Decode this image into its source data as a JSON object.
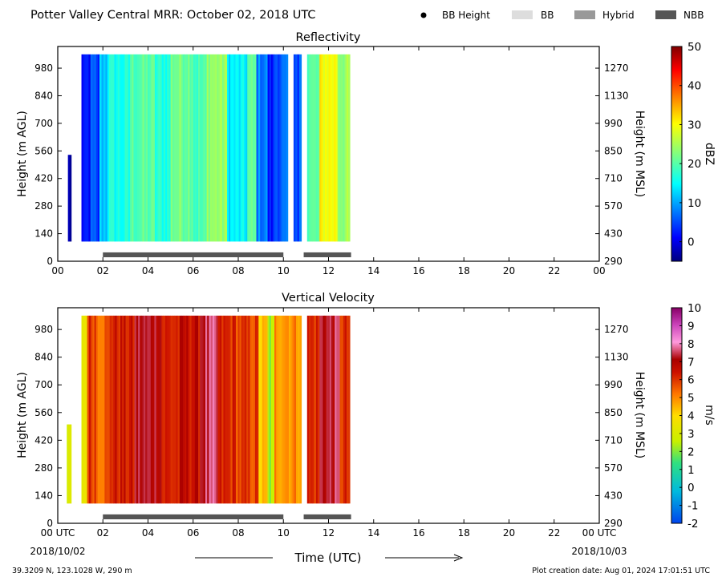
{
  "header": {
    "title": "Potter Valley Central MRR:  October 02, 2018 UTC",
    "legend": [
      {
        "label": "BB Height",
        "marker": "dot",
        "color": "#000000"
      },
      {
        "label": "BB",
        "marker": "box",
        "color": "#dddddd"
      },
      {
        "label": "Hybrid",
        "marker": "box",
        "color": "#999999"
      },
      {
        "label": "NBB",
        "marker": "box",
        "color": "#555555"
      }
    ]
  },
  "footer": {
    "location": "39.3209 N, 123.1028 W, 290 m",
    "created": "Plot creation date: Aug 01, 2024 17:01:51 UTC",
    "xlabel": "Time (UTC)",
    "start_date": "2018/10/02",
    "end_date": "2018/10/03"
  },
  "chart_data": [
    {
      "type": "heatmap",
      "title": "Reflectivity",
      "ylabel": "Height (m AGL)",
      "ylabel_right": "Height (m MSL)",
      "colorbar_label": "dBZ",
      "colorbar_ticks": [
        "50",
        "40",
        "30",
        "20",
        "10",
        "0"
      ],
      "color_range": [
        -5,
        50
      ],
      "xlim": [
        0,
        24
      ],
      "ylim": [
        0,
        1090
      ],
      "x_ticks": [
        "00",
        "02",
        "04",
        "06",
        "08",
        "10",
        "12",
        "14",
        "16",
        "18",
        "20",
        "22",
        "00"
      ],
      "y_ticks": [
        "0",
        "140",
        "280",
        "420",
        "560",
        "700",
        "840",
        "980"
      ],
      "y_ticks_right": [
        "290",
        "430",
        "570",
        "710",
        "850",
        "990",
        "1130",
        "1270"
      ],
      "data_height_range": [
        100,
        1050
      ],
      "profiles": [
        {
          "start": 0.45,
          "end": 0.6,
          "value": -3,
          "top": 540
        },
        {
          "start": 1.05,
          "end": 1.2,
          "value": 0
        },
        {
          "start": 1.2,
          "end": 1.45,
          "value": 2
        },
        {
          "start": 1.45,
          "end": 1.7,
          "value": 5
        },
        {
          "start": 1.7,
          "end": 1.85,
          "value": 3
        },
        {
          "start": 1.85,
          "end": 2.2,
          "value": 12
        },
        {
          "start": 2.2,
          "end": 3.2,
          "value": 16
        },
        {
          "start": 3.2,
          "end": 4.3,
          "value": 20
        },
        {
          "start": 4.3,
          "end": 5.0,
          "value": 17
        },
        {
          "start": 5.0,
          "end": 6.0,
          "value": 22
        },
        {
          "start": 6.0,
          "end": 6.6,
          "value": 19
        },
        {
          "start": 6.6,
          "end": 7.5,
          "value": 24
        },
        {
          "start": 7.5,
          "end": 8.4,
          "value": 14
        },
        {
          "start": 8.4,
          "end": 8.8,
          "value": 20
        },
        {
          "start": 8.8,
          "end": 9.3,
          "value": 8
        },
        {
          "start": 9.3,
          "end": 9.6,
          "value": 2
        },
        {
          "start": 9.6,
          "end": 10.2,
          "value": 6
        },
        {
          "start": 10.45,
          "end": 10.7,
          "value": 4
        },
        {
          "start": 10.7,
          "end": 10.8,
          "value": 10
        },
        {
          "start": 11.05,
          "end": 11.6,
          "value": 20
        },
        {
          "start": 11.6,
          "end": 12.4,
          "value": 30
        },
        {
          "start": 12.4,
          "end": 12.95,
          "value": 24
        }
      ],
      "bright_band": [
        {
          "start": 2.0,
          "end": 10.0,
          "type": "NBB"
        },
        {
          "start": 10.9,
          "end": 13.0,
          "type": "NBB"
        }
      ]
    },
    {
      "type": "heatmap",
      "title": "Vertical Velocity",
      "ylabel": "Height (m AGL)",
      "ylabel_right": "Height (m MSL)",
      "colorbar_label": "m/s",
      "colorbar_ticks": [
        "10",
        "9",
        "8",
        "7",
        "6",
        "5",
        "4",
        "3",
        "2",
        "1",
        "0",
        "-1",
        "-2"
      ],
      "color_range": [
        -2,
        10
      ],
      "xlim": [
        0,
        24
      ],
      "ylim": [
        0,
        1090
      ],
      "x_ticks": [
        "00 UTC",
        "02",
        "04",
        "06",
        "08",
        "10",
        "12",
        "14",
        "16",
        "18",
        "20",
        "22",
        "00 UTC"
      ],
      "y_ticks": [
        "0",
        "140",
        "280",
        "420",
        "560",
        "700",
        "840",
        "980"
      ],
      "y_ticks_right": [
        "290",
        "430",
        "570",
        "710",
        "850",
        "990",
        "1130",
        "1270"
      ],
      "data_height_range": [
        100,
        1050
      ],
      "profiles": [
        {
          "start": 0.4,
          "end": 0.6,
          "value": 2.8,
          "top": 500
        },
        {
          "start": 1.05,
          "end": 1.3,
          "value": 3.5
        },
        {
          "start": 1.3,
          "end": 1.7,
          "value": 6.0
        },
        {
          "start": 1.7,
          "end": 2.3,
          "value": 5.5
        },
        {
          "start": 2.3,
          "end": 3.4,
          "value": 6.3
        },
        {
          "start": 3.4,
          "end": 4.6,
          "value": 7.2
        },
        {
          "start": 4.6,
          "end": 5.4,
          "value": 6.2
        },
        {
          "start": 5.4,
          "end": 6.3,
          "value": 6.6
        },
        {
          "start": 6.3,
          "end": 7.1,
          "value": 7.4
        },
        {
          "start": 7.1,
          "end": 7.9,
          "value": 6.1
        },
        {
          "start": 7.9,
          "end": 8.9,
          "value": 5.8
        },
        {
          "start": 8.9,
          "end": 9.3,
          "value": 4.2
        },
        {
          "start": 9.3,
          "end": 9.6,
          "value": 2.2
        },
        {
          "start": 9.6,
          "end": 10.8,
          "value": 5.0
        },
        {
          "start": 11.05,
          "end": 11.6,
          "value": 6.1
        },
        {
          "start": 11.6,
          "end": 12.5,
          "value": 7.3
        },
        {
          "start": 12.5,
          "end": 12.95,
          "value": 6.0
        }
      ],
      "bright_band": [
        {
          "start": 2.0,
          "end": 10.0,
          "type": "NBB"
        },
        {
          "start": 10.9,
          "end": 13.0,
          "type": "NBB"
        }
      ]
    }
  ]
}
